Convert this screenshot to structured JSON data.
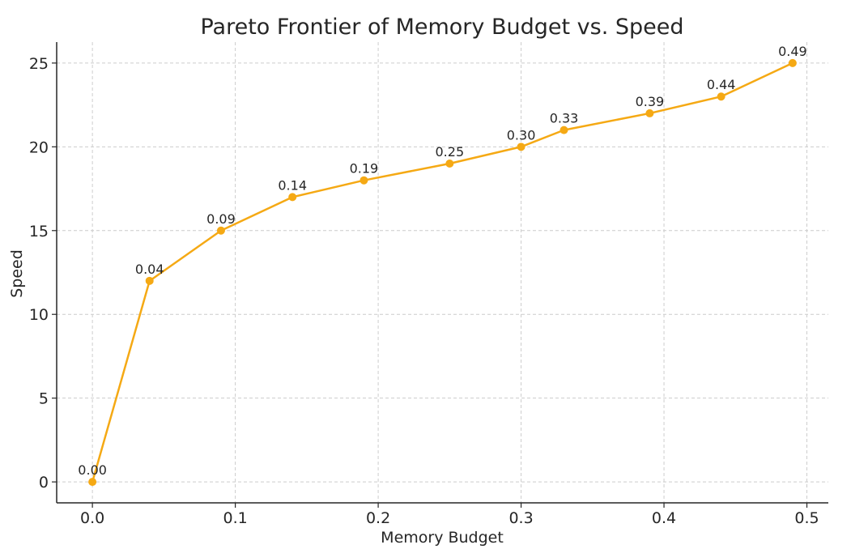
{
  "chart_data": {
    "type": "line",
    "title": "Pareto Frontier of Memory Budget vs. Speed",
    "xlabel": "Memory Budget",
    "ylabel": "Speed",
    "xlim": [
      -0.025,
      0.515
    ],
    "ylim": [
      -1.25,
      26.25
    ],
    "xticks": [
      0.0,
      0.1,
      0.2,
      0.3,
      0.4,
      0.5
    ],
    "xtick_labels": [
      "0.0",
      "0.1",
      "0.2",
      "0.3",
      "0.4",
      "0.5"
    ],
    "yticks": [
      0,
      5,
      10,
      15,
      20,
      25
    ],
    "ytick_labels": [
      "0",
      "5",
      "10",
      "15",
      "20",
      "25"
    ],
    "grid": true,
    "color": "#F5A914",
    "series": [
      {
        "x": [
          0.0,
          0.04,
          0.09,
          0.14,
          0.19,
          0.25,
          0.3,
          0.33,
          0.39,
          0.44,
          0.49
        ],
        "y": [
          0,
          12,
          15,
          17,
          18,
          19,
          20,
          21,
          22,
          23,
          25
        ],
        "point_labels": [
          "0.00",
          "0.04",
          "0.09",
          "0.14",
          "0.19",
          "0.25",
          "0.30",
          "0.33",
          "0.39",
          "0.44",
          "0.49"
        ]
      }
    ]
  }
}
